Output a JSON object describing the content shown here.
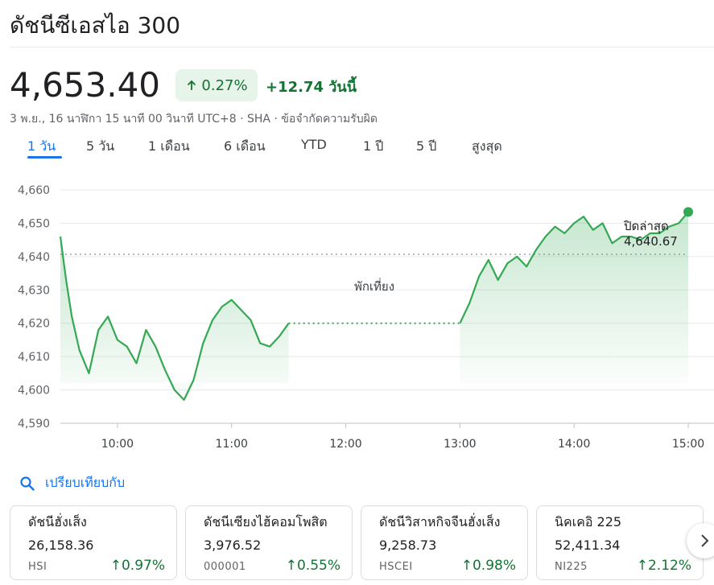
{
  "header": {
    "title": "ดัชนีซีเอสไอ 300"
  },
  "quote": {
    "price": "4,653.40",
    "pct_change": "0.27%",
    "abs_change": "+12.74 วันนี้",
    "meta": "3 พ.ย., 16 นาฬิกา 15 นาที 00 วินาที UTC+8 · SHA · ข้อจำกัดความรับผิด"
  },
  "tabs": [
    "1 วัน",
    "5 วัน",
    "1 เดือน",
    "6 เดือน",
    "YTD",
    "1 ปี",
    "5 ปี",
    "สูงสุด"
  ],
  "active_tab": "1 วัน",
  "chart_data": {
    "type": "line",
    "title": "",
    "xlabel": "",
    "ylabel": "",
    "x_ticks": [
      "10:00",
      "11:00",
      "12:00",
      "13:00",
      "14:00",
      "15:00"
    ],
    "y_ticks": [
      "4,590",
      "4,600",
      "4,610",
      "4,620",
      "4,630",
      "4,640",
      "4,650",
      "4,660"
    ],
    "ylim": [
      4590,
      4660
    ],
    "xlim": [
      "9:30",
      "15:00"
    ],
    "grid": true,
    "series_color": "#34a853",
    "previous_close": 4640.67,
    "previous_close_label": "ปิดล่าสุด",
    "previous_close_value": "4,640.67",
    "lunch_break_label": "พักเที่ยง",
    "series": [
      {
        "x": [
          "9:30",
          "9:33",
          "9:36",
          "9:40",
          "9:45",
          "9:50",
          "9:55",
          "10:00",
          "10:05",
          "10:10",
          "10:15",
          "10:20",
          "10:25",
          "10:30",
          "10:35",
          "10:40",
          "10:45",
          "10:50",
          "10:55",
          "11:00",
          "11:05",
          "11:10",
          "11:15",
          "11:20",
          "11:25",
          "11:30",
          "13:00",
          "13:05",
          "13:10",
          "13:15",
          "13:20",
          "13:25",
          "13:30",
          "13:35",
          "13:40",
          "13:45",
          "13:50",
          "13:55",
          "14:00",
          "14:05",
          "14:10",
          "14:15",
          "14:20",
          "14:25",
          "14:30",
          "14:35",
          "14:40",
          "14:45",
          "14:50",
          "14:55",
          "15:00"
        ],
        "values": [
          4646,
          4633,
          4622,
          4612,
          4605,
          4618,
          4622,
          4615,
          4613,
          4608,
          4618,
          4613,
          4606,
          4600,
          4597,
          4603,
          4614,
          4621,
          4625,
          4627,
          4624,
          4621,
          4614,
          4613,
          4616,
          4620,
          4620,
          4626,
          4634,
          4639,
          4633,
          4638,
          4640,
          4637,
          4642,
          4646,
          4649,
          4647,
          4650,
          4652,
          4648,
          4650,
          4644,
          4646,
          4646,
          4645,
          4647,
          4647,
          4649,
          4650,
          4653.4
        ]
      }
    ]
  },
  "compare": {
    "label": "เปรียบเทียบกับ",
    "icon": "search-icon"
  },
  "cards": [
    {
      "name": "ดัชนีฮั่งเส็ง",
      "value": "26,158.36",
      "symbol": "HSI",
      "change": "0.97%"
    },
    {
      "name": "ดัชนีเซียงไฮ้คอมโพสิต",
      "value": "3,976.52",
      "symbol": "000001",
      "change": "0.55%"
    },
    {
      "name": "ดัชนีวิสาหกิจจีนฮั่งเส็ง",
      "value": "9,258.73",
      "symbol": "HSCEI",
      "change": "0.98%"
    },
    {
      "name": "นิคเคอิ 225",
      "value": "52,411.34",
      "symbol": "NI225",
      "change": "2.12%"
    }
  ],
  "next_button": {
    "icon": "chevron-right-icon"
  }
}
